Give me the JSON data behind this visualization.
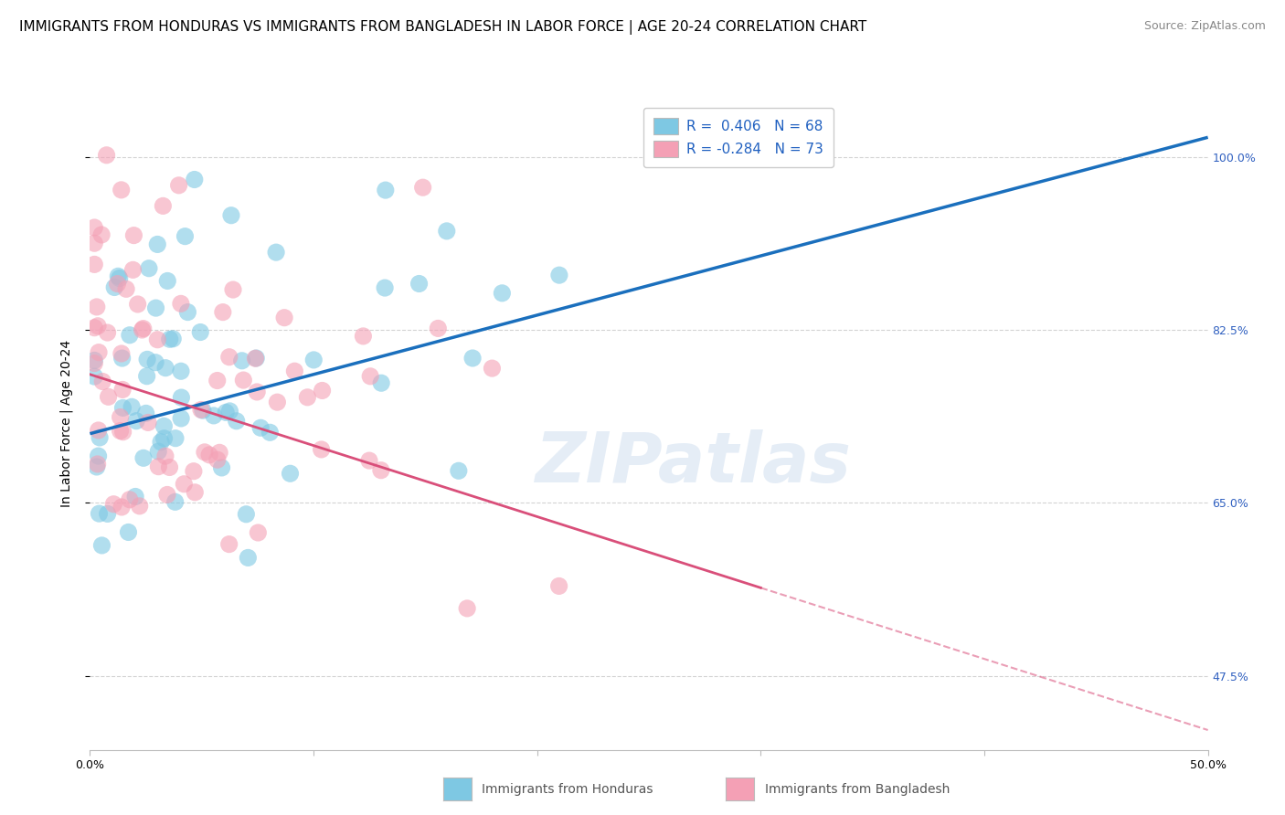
{
  "title": "IMMIGRANTS FROM HONDURAS VS IMMIGRANTS FROM BANGLADESH IN LABOR FORCE | AGE 20-24 CORRELATION CHART",
  "source": "Source: ZipAtlas.com",
  "ylabel": "In Labor Force | Age 20-24",
  "xlabel_honduras": "Immigrants from Honduras",
  "xlabel_bangladesh": "Immigrants from Bangladesh",
  "xlim": [
    0.0,
    0.5
  ],
  "ylim": [
    0.4,
    1.06
  ],
  "yticks": [
    0.475,
    0.65,
    0.825,
    1.0
  ],
  "ytick_labels": [
    "47.5%",
    "65.0%",
    "82.5%",
    "100.0%"
  ],
  "xticks": [
    0.0,
    0.1,
    0.2,
    0.3,
    0.4,
    0.5
  ],
  "xtick_labels": [
    "0.0%",
    "",
    "",
    "",
    "",
    "50.0%"
  ],
  "R_honduras": 0.406,
  "N_honduras": 68,
  "R_bangladesh": -0.284,
  "N_bangladesh": 73,
  "color_honduras": "#7ec8e3",
  "color_bangladesh": "#f4a0b5",
  "line_color_honduras": "#1a6fbd",
  "line_color_bangladesh": "#d94f7a",
  "background_color": "#ffffff",
  "grid_color": "#c8c8c8",
  "watermark": "ZIPatlas",
  "title_fontsize": 11,
  "source_fontsize": 9,
  "axis_label_fontsize": 10,
  "tick_fontsize": 9,
  "legend_fontsize": 11,
  "line_h_x0": 0.0,
  "line_h_y0": 0.72,
  "line_h_x1": 0.5,
  "line_h_y1": 1.02,
  "line_b_x0": 0.0,
  "line_b_y0": 0.78,
  "line_b_x1": 0.5,
  "line_b_y1": 0.42,
  "line_b_solid_end": 0.3
}
